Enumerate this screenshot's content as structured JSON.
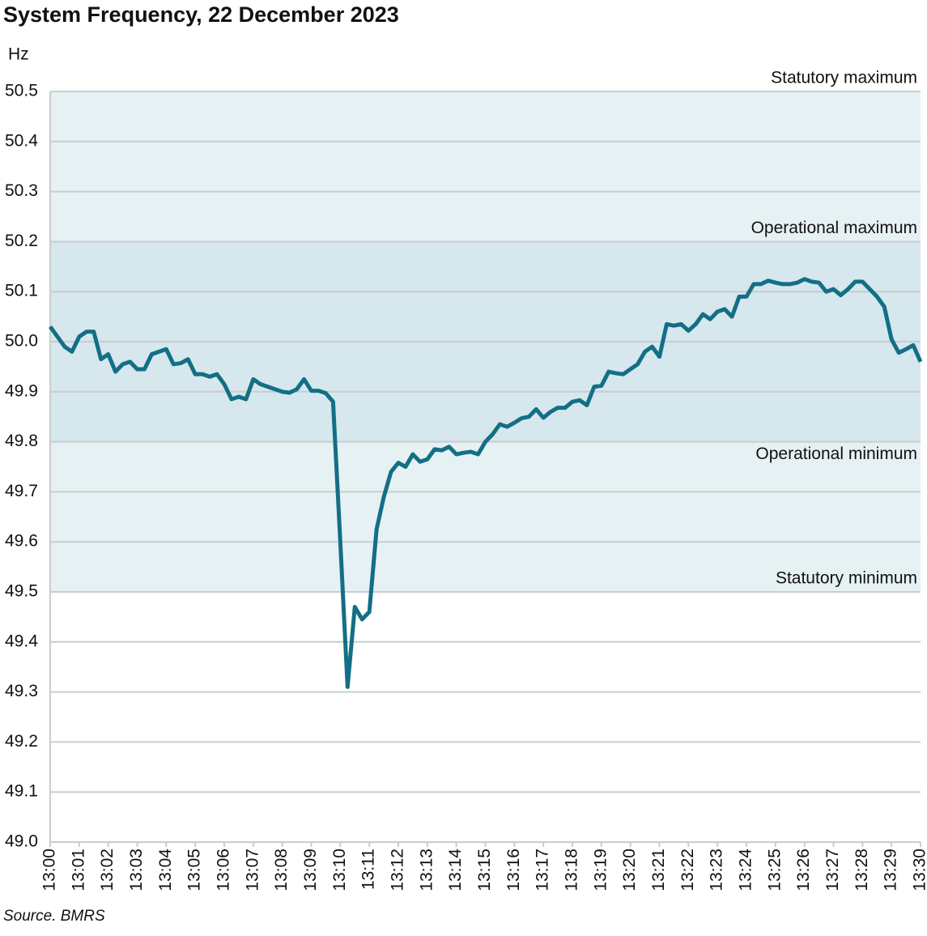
{
  "chart_data": {
    "type": "line",
    "title": "System Frequency, 22 December 2023",
    "y_label": "Hz",
    "source": "Source. BMRS",
    "x": [
      0,
      0.25,
      0.5,
      0.75,
      1,
      1.25,
      1.5,
      1.75,
      2,
      2.25,
      2.5,
      2.75,
      3,
      3.25,
      3.5,
      3.75,
      4,
      4.25,
      4.5,
      4.75,
      5,
      5.25,
      5.5,
      5.75,
      6,
      6.25,
      6.5,
      6.75,
      7,
      7.25,
      7.5,
      7.75,
      8,
      8.25,
      8.5,
      8.75,
      9,
      9.25,
      9.5,
      9.75,
      10,
      10.25,
      10.5,
      10.75,
      11,
      11.25,
      11.5,
      11.75,
      12,
      12.25,
      12.5,
      12.75,
      13,
      13.25,
      13.5,
      13.75,
      14,
      14.25,
      14.5,
      14.75,
      15,
      15.25,
      15.5,
      15.75,
      16,
      16.25,
      16.5,
      16.75,
      17,
      17.25,
      17.5,
      17.75,
      18,
      18.25,
      18.5,
      18.75,
      19,
      19.25,
      19.5,
      19.75,
      20,
      20.25,
      20.5,
      20.75,
      21,
      21.25,
      21.5,
      21.75,
      22,
      22.25,
      22.5,
      22.75,
      23,
      23.25,
      23.5,
      23.75,
      24,
      24.25,
      24.5,
      24.75,
      25,
      25.25,
      25.5,
      25.75,
      26,
      26.25,
      26.5,
      26.75,
      27,
      27.25,
      27.5,
      27.75,
      28,
      28.25,
      28.5,
      28.75,
      29,
      29.25,
      29.5,
      29.75,
      30
    ],
    "series": [
      {
        "name": "System frequency",
        "color": "#136f85",
        "values": [
          50.03,
          50.01,
          49.99,
          49.98,
          50.01,
          50.02,
          50.02,
          49.965,
          49.975,
          49.94,
          49.955,
          49.96,
          49.945,
          49.945,
          49.975,
          49.98,
          49.985,
          49.955,
          49.957,
          49.965,
          49.935,
          49.935,
          49.93,
          49.935,
          49.915,
          49.885,
          49.89,
          49.885,
          49.925,
          49.915,
          49.91,
          49.905,
          49.9,
          49.898,
          49.905,
          49.925,
          49.902,
          49.902,
          49.897,
          49.88,
          49.6,
          49.31,
          49.47,
          49.445,
          49.46,
          49.625,
          49.69,
          49.74,
          49.758,
          49.75,
          49.775,
          49.76,
          49.765,
          49.785,
          49.783,
          49.79,
          49.775,
          49.778,
          49.78,
          49.775,
          49.8,
          49.815,
          49.835,
          49.83,
          49.838,
          49.847,
          49.85,
          49.865,
          49.848,
          49.86,
          49.868,
          49.868,
          49.88,
          49.883,
          49.873,
          49.91,
          49.912,
          49.94,
          49.937,
          49.935,
          49.945,
          49.955,
          49.98,
          49.99,
          49.97,
          50.035,
          50.032,
          50.035,
          50.022,
          50.035,
          50.055,
          50.045,
          50.06,
          50.065,
          50.05,
          50.09,
          50.09,
          50.115,
          50.115,
          50.122,
          50.118,
          50.115,
          50.115,
          50.118,
          50.125,
          50.12,
          50.118,
          50.1,
          50.105,
          50.093,
          50.105,
          50.12,
          50.12,
          50.105,
          50.09,
          50.07,
          50.005,
          49.978,
          49.985,
          49.993,
          49.96
        ]
      }
    ],
    "xlim": [
      0,
      30
    ],
    "xticks": [
      {
        "value": 0,
        "label": "13:00"
      },
      {
        "value": 1,
        "label": "13:01"
      },
      {
        "value": 2,
        "label": "13:02"
      },
      {
        "value": 3,
        "label": "13:03"
      },
      {
        "value": 4,
        "label": "13:04"
      },
      {
        "value": 5,
        "label": "13:05"
      },
      {
        "value": 6,
        "label": "13:06"
      },
      {
        "value": 7,
        "label": "13:07"
      },
      {
        "value": 8,
        "label": "13:08"
      },
      {
        "value": 9,
        "label": "13:09"
      },
      {
        "value": 10,
        "label": "13:10"
      },
      {
        "value": 11,
        "label": "13:11"
      },
      {
        "value": 12,
        "label": "13:12"
      },
      {
        "value": 13,
        "label": "13:13"
      },
      {
        "value": 14,
        "label": "13:14"
      },
      {
        "value": 15,
        "label": "13:15"
      },
      {
        "value": 16,
        "label": "13:16"
      },
      {
        "value": 17,
        "label": "13:17"
      },
      {
        "value": 18,
        "label": "13:18"
      },
      {
        "value": 19,
        "label": "13:19"
      },
      {
        "value": 20,
        "label": "13:20"
      },
      {
        "value": 21,
        "label": "13:21"
      },
      {
        "value": 22,
        "label": "13:22"
      },
      {
        "value": 23,
        "label": "13:23"
      },
      {
        "value": 24,
        "label": "13:24"
      },
      {
        "value": 25,
        "label": "13:25"
      },
      {
        "value": 26,
        "label": "13:26"
      },
      {
        "value": 27,
        "label": "13:27"
      },
      {
        "value": 28,
        "label": "13:28"
      },
      {
        "value": 29,
        "label": "13:29"
      },
      {
        "value": 30,
        "label": "13:30"
      }
    ],
    "ylim": [
      49.0,
      50.5
    ],
    "yticks": [
      50.5,
      50.4,
      50.3,
      50.2,
      50.1,
      {
        "value": 50.0,
        "label": "50.0"
      },
      49.9,
      49.8,
      49.7,
      49.6,
      49.5,
      49.4,
      49.3,
      49.2,
      49.1,
      {
        "value": 49.0,
        "label": "49.0"
      }
    ],
    "grid": true,
    "bands": [
      {
        "from": 49.5,
        "to": 50.5,
        "color": "#e6f1f4"
      },
      {
        "from": 49.8,
        "to": 50.2,
        "color": "#d6e7ed"
      }
    ],
    "annotations": [
      {
        "text": "Statutory maximum",
        "value": 50.5
      },
      {
        "text": "Operational maximum",
        "value": 50.2
      },
      {
        "text": "Operational minimum",
        "value": 49.8
      },
      {
        "text": "Statutory minimum",
        "value": 49.5
      }
    ]
  }
}
